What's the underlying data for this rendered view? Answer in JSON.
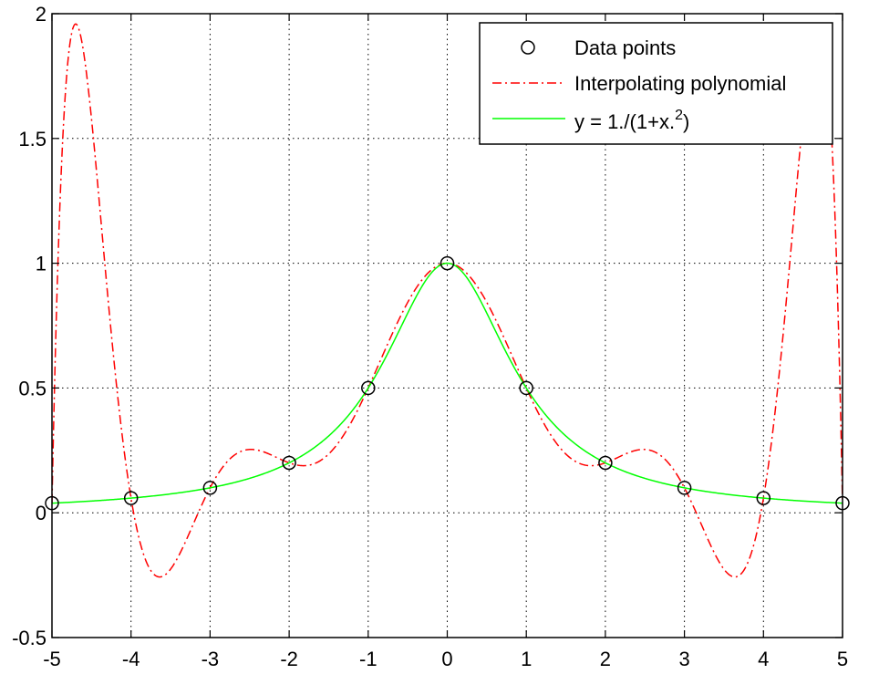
{
  "chart_data": {
    "type": "line",
    "title": "",
    "xlabel": "",
    "ylabel": "",
    "xlim": [
      -5,
      5
    ],
    "ylim": [
      -0.5,
      2
    ],
    "grid": true,
    "legend_position": "top-right",
    "x_ticks": [
      "-5",
      "-4",
      "-3",
      "-2",
      "-1",
      "0",
      "1",
      "2",
      "3",
      "4",
      "5"
    ],
    "y_ticks": [
      "-0.5",
      "0",
      "0.5",
      "1",
      "1.5",
      "2"
    ],
    "legend": {
      "data_points": "Data points",
      "interp": "Interpolating polynomial",
      "func_base": "y = 1./(1+x.",
      "func_sup": "2",
      "func_end": ")"
    },
    "data_points": {
      "x": [
        -5,
        -4,
        -3,
        -2,
        -1,
        0,
        1,
        2,
        3,
        4,
        5
      ],
      "y": [
        0.0385,
        0.0588,
        0.1,
        0.2,
        0.5,
        1,
        0.5,
        0.2,
        0.1,
        0.0588,
        0.0385
      ]
    },
    "series": [
      {
        "name": "Data points",
        "style": "markers",
        "color": "#000000"
      },
      {
        "name": "Interpolating polynomial",
        "style": "dash-dot",
        "color": "#ff0000"
      },
      {
        "name": "y = 1./(1+x.^2)",
        "style": "solid",
        "color": "#00ff00"
      }
    ]
  }
}
